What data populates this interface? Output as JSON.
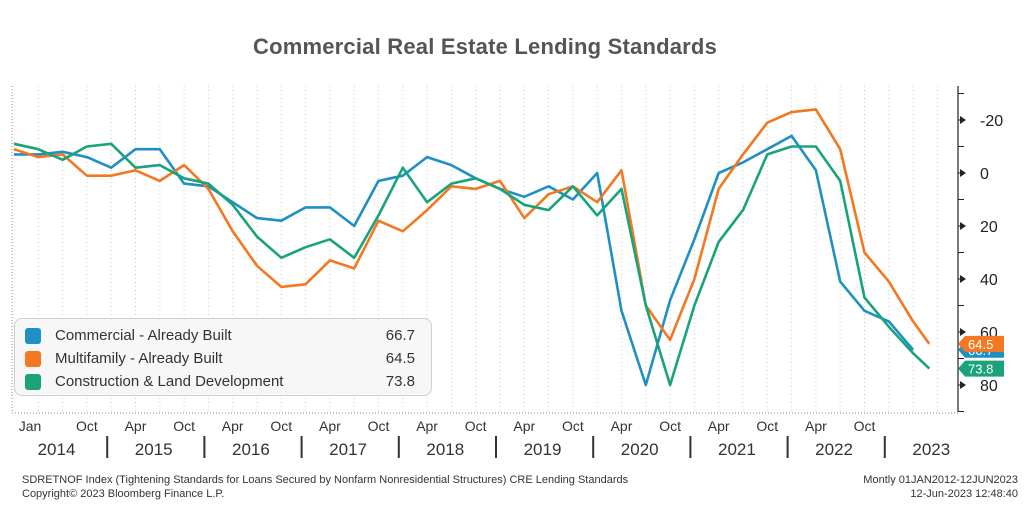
{
  "chart_data": {
    "type": "line",
    "title": "Commercial Real Estate Lending Standards",
    "x_labels": [
      {
        "year": 2014,
        "months": [
          "Jan",
          "",
          "Oct"
        ]
      },
      {
        "year": 2015,
        "months": [
          "Apr",
          "",
          "Oct"
        ]
      },
      {
        "year": 2016,
        "months": [
          "Apr",
          "",
          "Oct"
        ]
      },
      {
        "year": 2017,
        "months": [
          "Apr",
          "",
          "Oct"
        ]
      },
      {
        "year": 2018,
        "months": [
          "Apr",
          "",
          "Oct"
        ]
      },
      {
        "year": 2019,
        "months": [
          "Apr",
          "",
          "Oct"
        ]
      },
      {
        "year": 2020,
        "months": [
          "Apr",
          "",
          "Oct"
        ]
      },
      {
        "year": 2021,
        "months": [
          "Apr",
          "",
          "Oct"
        ]
      },
      {
        "year": 2022,
        "months": [
          "Apr",
          "",
          "Oct"
        ]
      },
      {
        "year": 2023,
        "months": [
          "",
          ""
        ]
      }
    ],
    "y_axis": {
      "inverted": true,
      "ylim": [
        -30,
        90
      ],
      "ticks": [
        -20,
        0,
        20,
        40,
        60,
        80
      ],
      "side": "right"
    },
    "grid": "vertical-dotted",
    "legend_position": "bottom-left",
    "series": [
      {
        "name": "Commercial - Already Built",
        "last_value": "66.7",
        "color": "#1f8fc4",
        "points": [
          [
            "2014-01",
            -7
          ],
          [
            "2014-04",
            -7
          ],
          [
            "2014-07",
            -8
          ],
          [
            "2014-10",
            -6
          ],
          [
            "2015-01",
            -2
          ],
          [
            "2015-04",
            -9
          ],
          [
            "2015-07",
            -9
          ],
          [
            "2015-10",
            4
          ],
          [
            "2016-01",
            5
          ],
          [
            "2016-04",
            11
          ],
          [
            "2016-07",
            17
          ],
          [
            "2016-10",
            18
          ],
          [
            "2017-01",
            13
          ],
          [
            "2017-04",
            13
          ],
          [
            "2017-07",
            20
          ],
          [
            "2017-10",
            3
          ],
          [
            "2018-01",
            1
          ],
          [
            "2018-04",
            -6
          ],
          [
            "2018-07",
            -3
          ],
          [
            "2018-10",
            2
          ],
          [
            "2019-01",
            6
          ],
          [
            "2019-04",
            9
          ],
          [
            "2019-07",
            5
          ],
          [
            "2019-10",
            10
          ],
          [
            "2020-01",
            0
          ],
          [
            "2020-04",
            52
          ],
          [
            "2020-07",
            80
          ],
          [
            "2020-10",
            48
          ],
          [
            "2021-01",
            25
          ],
          [
            "2021-04",
            0
          ],
          [
            "2021-07",
            -4
          ],
          [
            "2021-10",
            -9
          ],
          [
            "2022-01",
            -14
          ],
          [
            "2022-04",
            -1
          ],
          [
            "2022-07",
            41
          ],
          [
            "2022-10",
            52
          ],
          [
            "2023-01",
            56
          ],
          [
            "2023-04",
            66.7
          ]
        ]
      },
      {
        "name": "Multifamily - Already Built",
        "last_value": "64.5",
        "color": "#f47721",
        "points": [
          [
            "2014-01",
            -9
          ],
          [
            "2014-04",
            -6
          ],
          [
            "2014-07",
            -7
          ],
          [
            "2014-10",
            1
          ],
          [
            "2015-01",
            1
          ],
          [
            "2015-04",
            -1
          ],
          [
            "2015-07",
            3
          ],
          [
            "2015-10",
            -3
          ],
          [
            "2016-01",
            6
          ],
          [
            "2016-04",
            22
          ],
          [
            "2016-07",
            35
          ],
          [
            "2016-10",
            43
          ],
          [
            "2017-01",
            42
          ],
          [
            "2017-04",
            33
          ],
          [
            "2017-07",
            36
          ],
          [
            "2017-10",
            18
          ],
          [
            "2018-01",
            22
          ],
          [
            "2018-04",
            14
          ],
          [
            "2018-07",
            5
          ],
          [
            "2018-10",
            6
          ],
          [
            "2019-01",
            3
          ],
          [
            "2019-04",
            17
          ],
          [
            "2019-07",
            8
          ],
          [
            "2019-10",
            5
          ],
          [
            "2020-01",
            11
          ],
          [
            "2020-04",
            -1
          ],
          [
            "2020-07",
            50
          ],
          [
            "2020-10",
            63
          ],
          [
            "2021-01",
            40
          ],
          [
            "2021-04",
            6
          ],
          [
            "2021-07",
            -7
          ],
          [
            "2021-10",
            -19
          ],
          [
            "2022-01",
            -23
          ],
          [
            "2022-04",
            -24
          ],
          [
            "2022-07",
            -9
          ],
          [
            "2022-10",
            30
          ],
          [
            "2023-01",
            41
          ],
          [
            "2023-04",
            56
          ],
          [
            "2023-06",
            64.5
          ]
        ]
      },
      {
        "name": "Construction & Land Development",
        "last_value": "73.8",
        "color": "#1aa37a",
        "points": [
          [
            "2014-01",
            -11
          ],
          [
            "2014-04",
            -9
          ],
          [
            "2014-07",
            -5
          ],
          [
            "2014-10",
            -10
          ],
          [
            "2015-01",
            -11
          ],
          [
            "2015-04",
            -2
          ],
          [
            "2015-07",
            -3
          ],
          [
            "2015-10",
            2
          ],
          [
            "2016-01",
            4
          ],
          [
            "2016-04",
            12
          ],
          [
            "2016-07",
            24
          ],
          [
            "2016-10",
            32
          ],
          [
            "2017-01",
            28
          ],
          [
            "2017-04",
            25
          ],
          [
            "2017-07",
            32
          ],
          [
            "2017-10",
            16
          ],
          [
            "2018-01",
            -2
          ],
          [
            "2018-04",
            11
          ],
          [
            "2018-07",
            4
          ],
          [
            "2018-10",
            2
          ],
          [
            "2019-01",
            6
          ],
          [
            "2019-04",
            12
          ],
          [
            "2019-07",
            14
          ],
          [
            "2019-10",
            5
          ],
          [
            "2020-01",
            16
          ],
          [
            "2020-04",
            6
          ],
          [
            "2020-07",
            50
          ],
          [
            "2020-10",
            80
          ],
          [
            "2021-01",
            50
          ],
          [
            "2021-04",
            26
          ],
          [
            "2021-07",
            14
          ],
          [
            "2021-10",
            -7
          ],
          [
            "2022-01",
            -10
          ],
          [
            "2022-04",
            -10
          ],
          [
            "2022-07",
            3
          ],
          [
            "2022-10",
            47
          ],
          [
            "2023-01",
            58
          ],
          [
            "2023-04",
            68
          ],
          [
            "2023-06",
            73.8
          ]
        ]
      }
    ]
  },
  "footer": {
    "source": "SDRETNOF Index (Tightening Standards for Loans Secured by Nonfarm Nonresidential Structures) CRE Lending Standards",
    "copyright": "Copyright© 2023 Bloomberg Finance L.P.",
    "range": "Montly 01JAN2012-12JUN2023",
    "timestamp": "12-Jun-2023 12:48:40"
  }
}
